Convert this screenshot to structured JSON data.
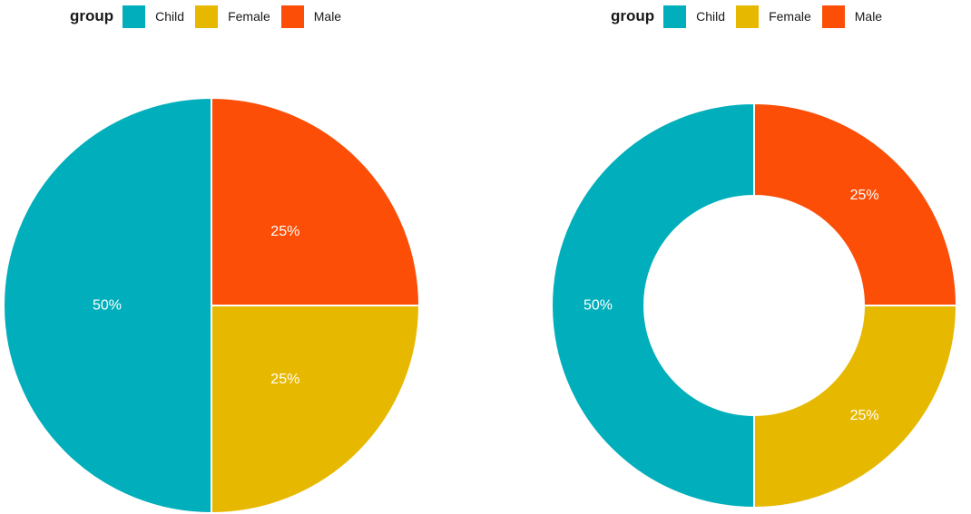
{
  "chart_data": [
    {
      "type": "pie",
      "legend": {
        "title": "group",
        "position": "top"
      },
      "categories": [
        "Child",
        "Female",
        "Male"
      ],
      "values": [
        50,
        25,
        25
      ],
      "labels": [
        "50%",
        "25%",
        "25%"
      ],
      "colors": [
        "#00AFBB",
        "#E7B800",
        "#FC4E07"
      ]
    },
    {
      "type": "pie",
      "donut": true,
      "legend": {
        "title": "group",
        "position": "top"
      },
      "categories": [
        "Child",
        "Female",
        "Male"
      ],
      "values": [
        50,
        25,
        25
      ],
      "labels": [
        "50%",
        "25%",
        "25%"
      ],
      "colors": [
        "#00AFBB",
        "#E7B800",
        "#FC4E07"
      ]
    }
  ]
}
